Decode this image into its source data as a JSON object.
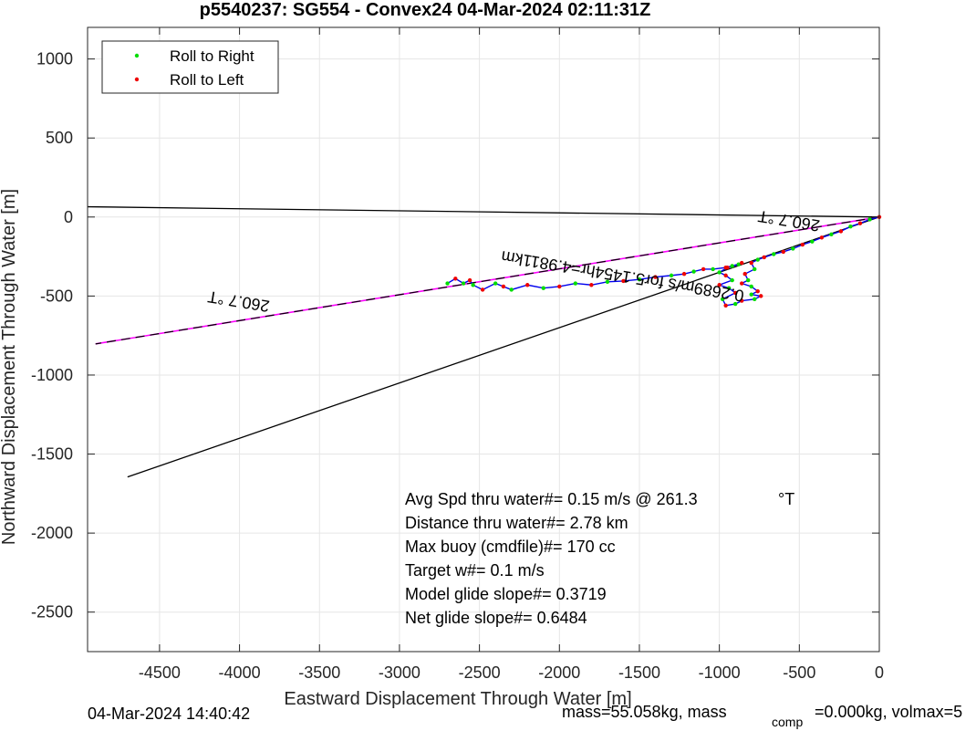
{
  "chart_data": {
    "type": "line",
    "title": "p5540237: SG554 - Convex24 04-Mar-2024 02:11:31Z",
    "xlabel": "Eastward Displacement Through Water [m]",
    "ylabel": "Northward Displacement Through Water [m]",
    "xlim": [
      -4950,
      0
    ],
    "ylim": [
      -2750,
      1200
    ],
    "xticks": [
      -4500,
      -4000,
      -3500,
      -3000,
      -2500,
      -2000,
      -1500,
      -1000,
      -500,
      0
    ],
    "yticks": [
      1000,
      500,
      0,
      -500,
      -1000,
      -1500,
      -2000,
      -2500
    ],
    "grid": true,
    "legend": {
      "placement": "top-left",
      "entries": [
        {
          "label": "Roll to Right",
          "color": "#00dd00"
        },
        {
          "label": "Roll to Left",
          "color": "#ee0000"
        }
      ]
    },
    "reference_lines": [
      {
        "color": "#000000",
        "style": "solid",
        "x": [
          0,
          -4950
        ],
        "y": [
          0,
          65
        ]
      },
      {
        "color": "#000000",
        "style": "solid",
        "x": [
          0,
          -4700
        ],
        "y": [
          0,
          -1645
        ]
      },
      {
        "color": "#ff00ff",
        "style": "solid",
        "x": [
          0,
          -4900
        ],
        "y": [
          0,
          -803
        ]
      },
      {
        "color": "#000000",
        "style": "dashed",
        "x": [
          0,
          -4900
        ],
        "y": [
          0,
          -803
        ]
      }
    ],
    "track": {
      "color": "#0000ee",
      "x": [
        0,
        -60,
        -120,
        -180,
        -240,
        -300,
        -360,
        -420,
        -480,
        -540,
        -600,
        -660,
        -720,
        -760,
        -800,
        -780,
        -840,
        -820,
        -860,
        -800,
        -760,
        -800,
        -740,
        -780,
        -860,
        -900,
        -960,
        -980,
        -900,
        -940,
        -1000,
        -920,
        -960,
        -1000,
        -950,
        -880,
        -860,
        -920,
        -960,
        -1040,
        -1100,
        -1160,
        -1220,
        -1300,
        -1400,
        -1500,
        -1600,
        -1700,
        -1800,
        -1900,
        -2000,
        -2100,
        -2200,
        -2300,
        -2350,
        -2400,
        -2480,
        -2540,
        -2560,
        -2600,
        -2650,
        -2700
      ],
      "y": [
        0,
        -15,
        -40,
        -60,
        -90,
        -110,
        -130,
        -155,
        -175,
        -200,
        -220,
        -235,
        -255,
        -270,
        -290,
        -330,
        -360,
        -400,
        -420,
        -440,
        -470,
        -490,
        -500,
        -520,
        -530,
        -550,
        -560,
        -520,
        -480,
        -450,
        -430,
        -400,
        -370,
        -350,
        -320,
        -300,
        -290,
        -310,
        -320,
        -330,
        -330,
        -345,
        -360,
        -370,
        -380,
        -395,
        -405,
        -410,
        -430,
        -420,
        -440,
        -450,
        -430,
        -460,
        -440,
        -420,
        -460,
        -430,
        -400,
        -420,
        -390,
        -420
      ]
    },
    "direction_labels": [
      {
        "text": "260.7 °T",
        "x": -4000,
        "y": -500,
        "rotation_deg": 189.3
      },
      {
        "text": "260.7 °T",
        "x": -560,
        "y": 10,
        "rotation_deg": 189.3
      },
      {
        "text": "0.2689m/s for5.1454hr=4.9811km",
        "x": -1600,
        "y": -340,
        "rotation_deg": 189.3
      }
    ],
    "annotations": [
      "Avg Spd thru water#=  0.15 m/s @ 261.3",
      "°T",
      "Distance thru water#=  2.78 km",
      "Max buoy (cmdfile)#= 170 cc",
      "Target w#= 0.1 m/s",
      "Model glide slope#= 0.3719",
      "Net glide slope#= 0.6484"
    ]
  },
  "footer": {
    "timestamp": "04-Mar-2024 14:40:42",
    "mass_text": "mass=55.058kg, mass",
    "comp_sub": "comp",
    "comp_rest": "=0.000kg, volmax=5"
  }
}
